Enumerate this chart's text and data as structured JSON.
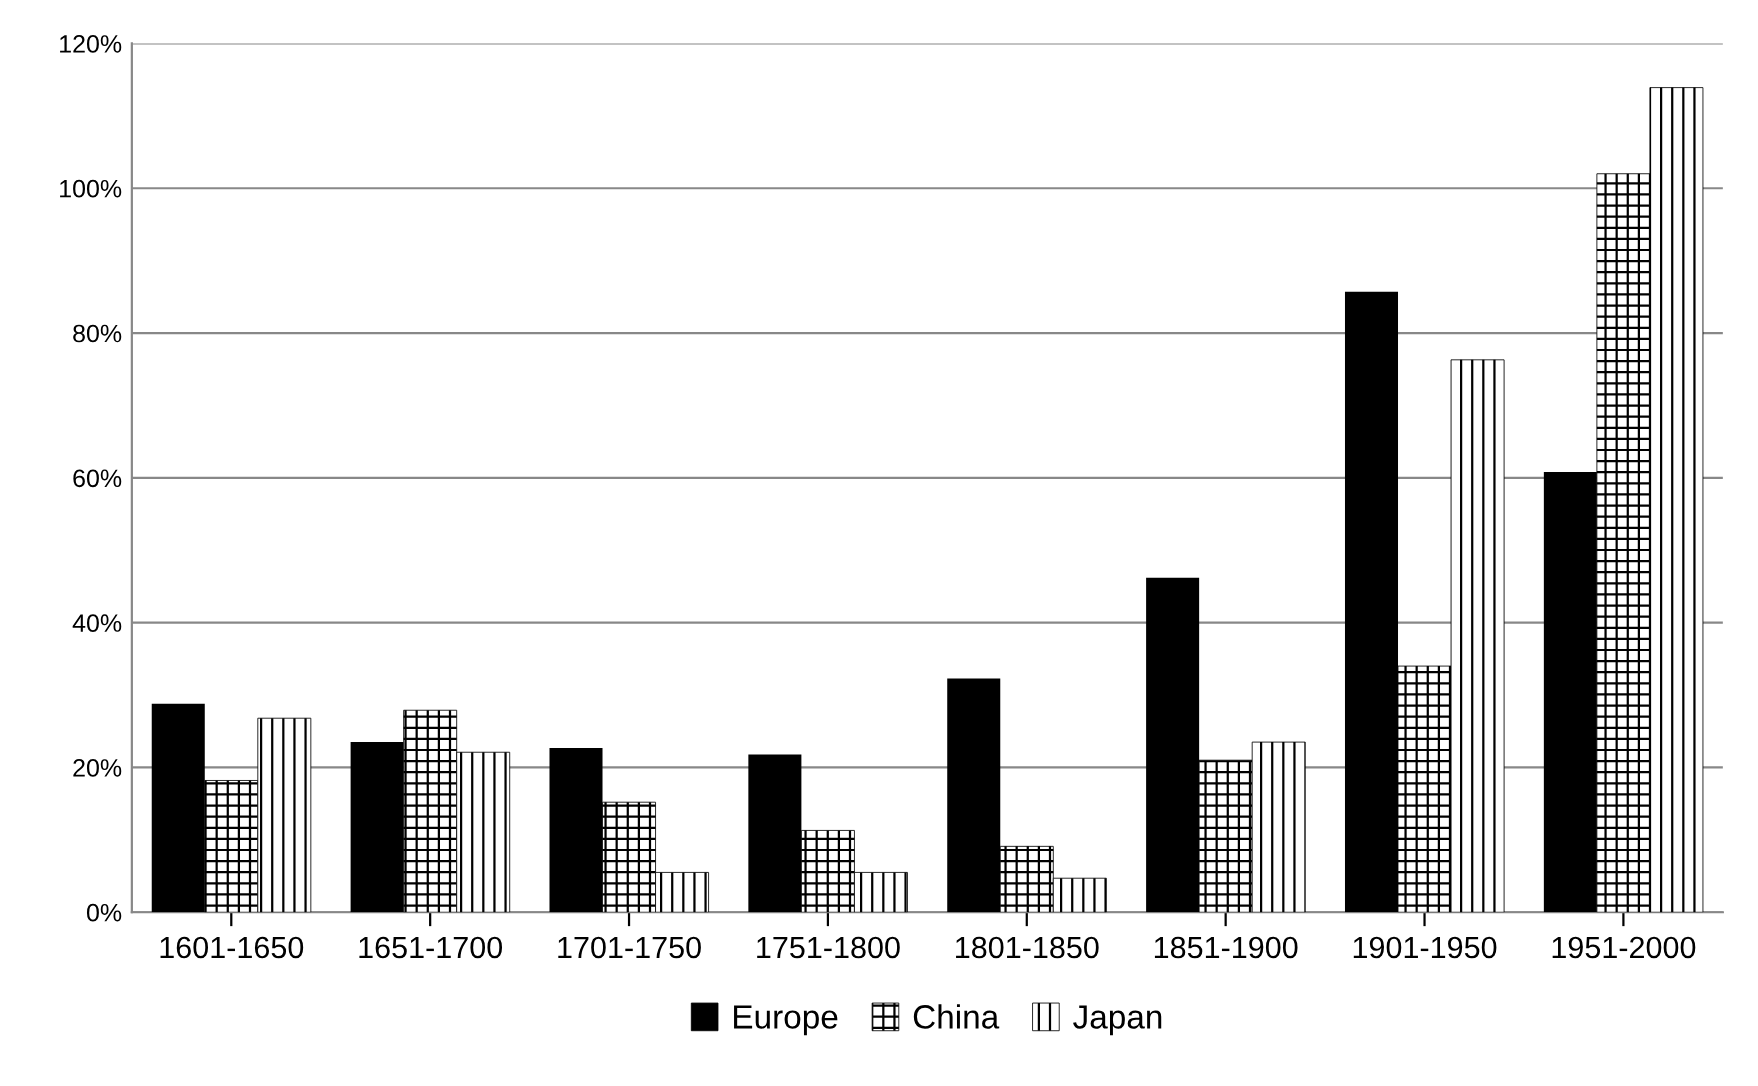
{
  "chart_data": {
    "type": "bar",
    "categories": [
      "1601-1650",
      "1651-1700",
      "1701-1750",
      "1751-1800",
      "1801-1850",
      "1851-1900",
      "1901-1950",
      "1951-2000"
    ],
    "series": [
      {
        "name": "Europe",
        "color": "#000000",
        "values": [
          28.8,
          23.5,
          22.7,
          21.8,
          32.3,
          46.2,
          85.7,
          60.8
        ]
      },
      {
        "name": "China",
        "color": "#000000",
        "values": [
          18.2,
          27.9,
          15.2,
          11.3,
          9.1,
          21.0,
          34.0,
          102.0
        ]
      },
      {
        "name": "Japan",
        "color": "#000000",
        "values": [
          26.8,
          22.1,
          5.5,
          5.5,
          4.7,
          23.5,
          76.3,
          113.9
        ]
      }
    ],
    "ylim": [
      0,
      120
    ],
    "yticks": [
      {
        "value": 0,
        "label": "0%"
      },
      {
        "value": 20,
        "label": "20%"
      },
      {
        "value": 40,
        "label": "40%"
      },
      {
        "value": 60,
        "label": "60%"
      },
      {
        "value": 80,
        "label": "80%"
      },
      {
        "value": 100,
        "label": "100%"
      },
      {
        "value": 120,
        "label": "120%"
      }
    ],
    "grid": "y",
    "legend": "bottom"
  }
}
